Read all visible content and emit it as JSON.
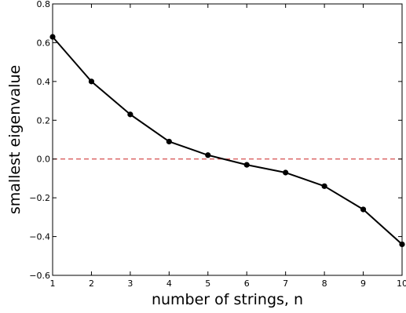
{
  "chart_data": {
    "type": "line",
    "title": "",
    "xlabel": "number of strings, n",
    "ylabel": "smallest eigenvalue",
    "xlim": [
      1,
      10
    ],
    "ylim": [
      -0.6,
      0.8
    ],
    "x_ticks": [
      1,
      2,
      3,
      4,
      5,
      6,
      7,
      8,
      9,
      10
    ],
    "x_tick_labels": [
      "1",
      "2",
      "3",
      "4",
      "5",
      "6",
      "7",
      "8",
      "9",
      "10"
    ],
    "y_ticks": [
      -0.6,
      -0.4,
      -0.2,
      0.0,
      0.2,
      0.4,
      0.6,
      0.8
    ],
    "y_tick_labels": [
      "−0.6",
      "−0.4",
      "−0.2",
      "0.0",
      "0.2",
      "0.4",
      "0.6",
      "0.8"
    ],
    "grid": false,
    "series": [
      {
        "x": [
          1,
          2,
          3,
          4,
          5,
          6,
          7,
          8,
          9,
          10
        ],
        "y": [
          0.63,
          0.4,
          0.23,
          0.09,
          0.02,
          -0.03,
          -0.07,
          -0.14,
          -0.26,
          -0.44
        ],
        "color": "#000000",
        "marker": "circle"
      }
    ],
    "reference_lines": [
      {
        "orientation": "horizontal",
        "y": 0.0,
        "color": "#cc2222",
        "style": "dashed"
      }
    ]
  }
}
